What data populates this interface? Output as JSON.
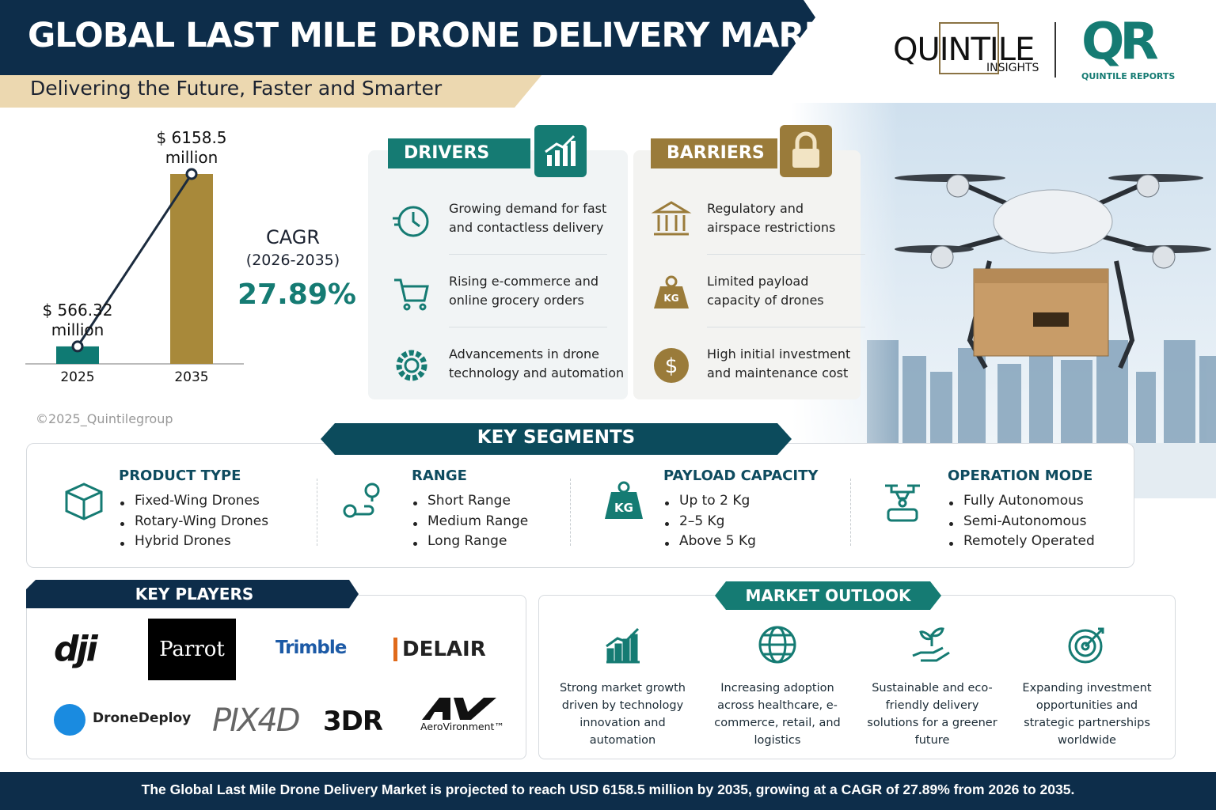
{
  "header": {
    "title": "GLOBAL LAST MILE DRONE DELIVERY MARKET",
    "subtitle": "Delivering the Future, Faster and Smarter"
  },
  "logos": {
    "quintile": "QUINTILE",
    "insights": "INSIGHTS",
    "qr": "QR",
    "reports": "QUINTILE REPORTS"
  },
  "chart": {
    "type": "bar",
    "categories": [
      "2025",
      "2035"
    ],
    "values": [
      566.32,
      6158.5
    ],
    "value_labels": [
      "$ 566.32 million",
      "$ 6158.5 million"
    ],
    "colors": [
      "#0f7a73",
      "#a8893a"
    ]
  },
  "cagr": {
    "label": "CAGR",
    "period": "(2026-2035)",
    "value": "27.89%"
  },
  "copyright": "©2025_Quintilegroup",
  "drivers": {
    "title": "DRIVERS",
    "items": [
      "Growing demand for fast and contactless delivery",
      "Rising e-commerce and online grocery orders",
      "Advancements in drone technology and automation"
    ]
  },
  "barriers": {
    "title": "BARRIERS",
    "items": [
      "Regulatory and airspace restrictions",
      "Limited payload capacity of drones",
      "High initial investment and maintenance cost"
    ]
  },
  "segments": {
    "title": "KEY SEGMENTS",
    "groups": [
      {
        "title": "PRODUCT TYPE",
        "items": [
          "Fixed-Wing Drones",
          "Rotary-Wing Drones",
          "Hybrid Drones"
        ]
      },
      {
        "title": "RANGE",
        "items": [
          "Short Range",
          "Medium Range",
          "Long Range"
        ]
      },
      {
        "title": "PAYLOAD CAPACITY",
        "items": [
          "Up to 2 Kg",
          "2–5 Kg",
          "Above 5 Kg"
        ]
      },
      {
        "title": "OPERATION MODE",
        "items": [
          "Fully Autonomous",
          "Semi-Autonomous",
          "Remotely Operated"
        ]
      }
    ]
  },
  "players": {
    "title": "KEY PLAYERS",
    "names": [
      "dji",
      "Parrot",
      "Trimble",
      "DELAIR",
      "DroneDeploy",
      "PIX4D",
      "3DR",
      "AeroVironment™"
    ]
  },
  "outlook": {
    "title": "MARKET OUTLOOK",
    "items": [
      "Strong market growth driven by technology innovation and automation",
      "Increasing adoption across healthcare, e-commerce, retail, and logistics",
      "Sustainable and eco-friendly delivery solutions for a greener future",
      "Expanding investment opportunities and strategic partnerships worldwide"
    ]
  },
  "footer": "The Global Last Mile Drone Delivery Market is projected to reach USD 6158.5 million by 2035, growing at a CAGR of 27.89% from 2026 to 2035."
}
